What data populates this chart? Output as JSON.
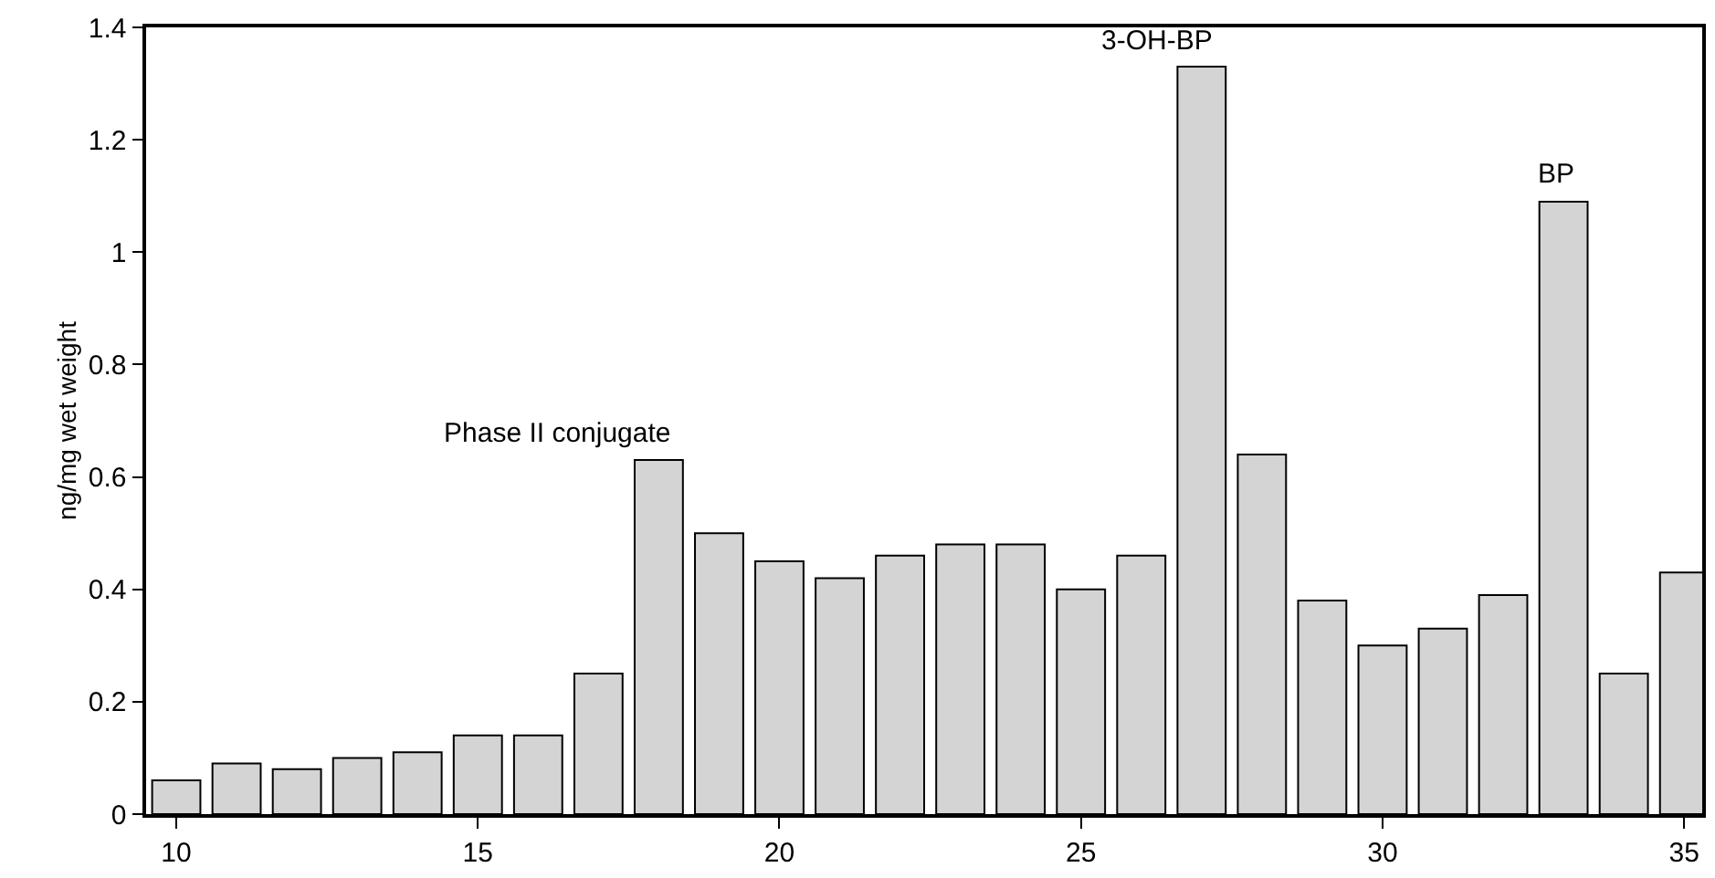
{
  "chart_data": {
    "type": "bar",
    "ylabel": "ng/mg wet weight",
    "x": [
      10,
      11,
      12,
      13,
      14,
      15,
      16,
      17,
      18,
      19,
      20,
      21,
      22,
      23,
      24,
      25,
      26,
      27,
      28,
      29,
      30,
      31,
      32,
      33,
      34,
      35
    ],
    "values": [
      0.06,
      0.09,
      0.08,
      0.1,
      0.11,
      0.14,
      0.14,
      0.25,
      0.63,
      0.5,
      0.45,
      0.42,
      0.46,
      0.48,
      0.48,
      0.4,
      0.46,
      1.33,
      0.64,
      0.38,
      0.3,
      0.33,
      0.39,
      1.09,
      0.25,
      0.43
    ],
    "color": "#d4d4d4",
    "xlim": [
      9.5,
      35.3
    ],
    "xticks": [
      10,
      15,
      20,
      25,
      30,
      35
    ],
    "ylim": [
      0,
      1.4
    ],
    "yticks": [
      0,
      0.2,
      0.4,
      0.6,
      0.8,
      1,
      1.2,
      1.4
    ],
    "grid": false,
    "legend": false,
    "annotations": [
      {
        "text": "Phase II conjugate",
        "x": 18,
        "y": 0.63
      },
      {
        "text": "3-OH-BP",
        "x": 27,
        "y": 1.33
      },
      {
        "text": "BP",
        "x": 33,
        "y": 1.09
      }
    ]
  }
}
